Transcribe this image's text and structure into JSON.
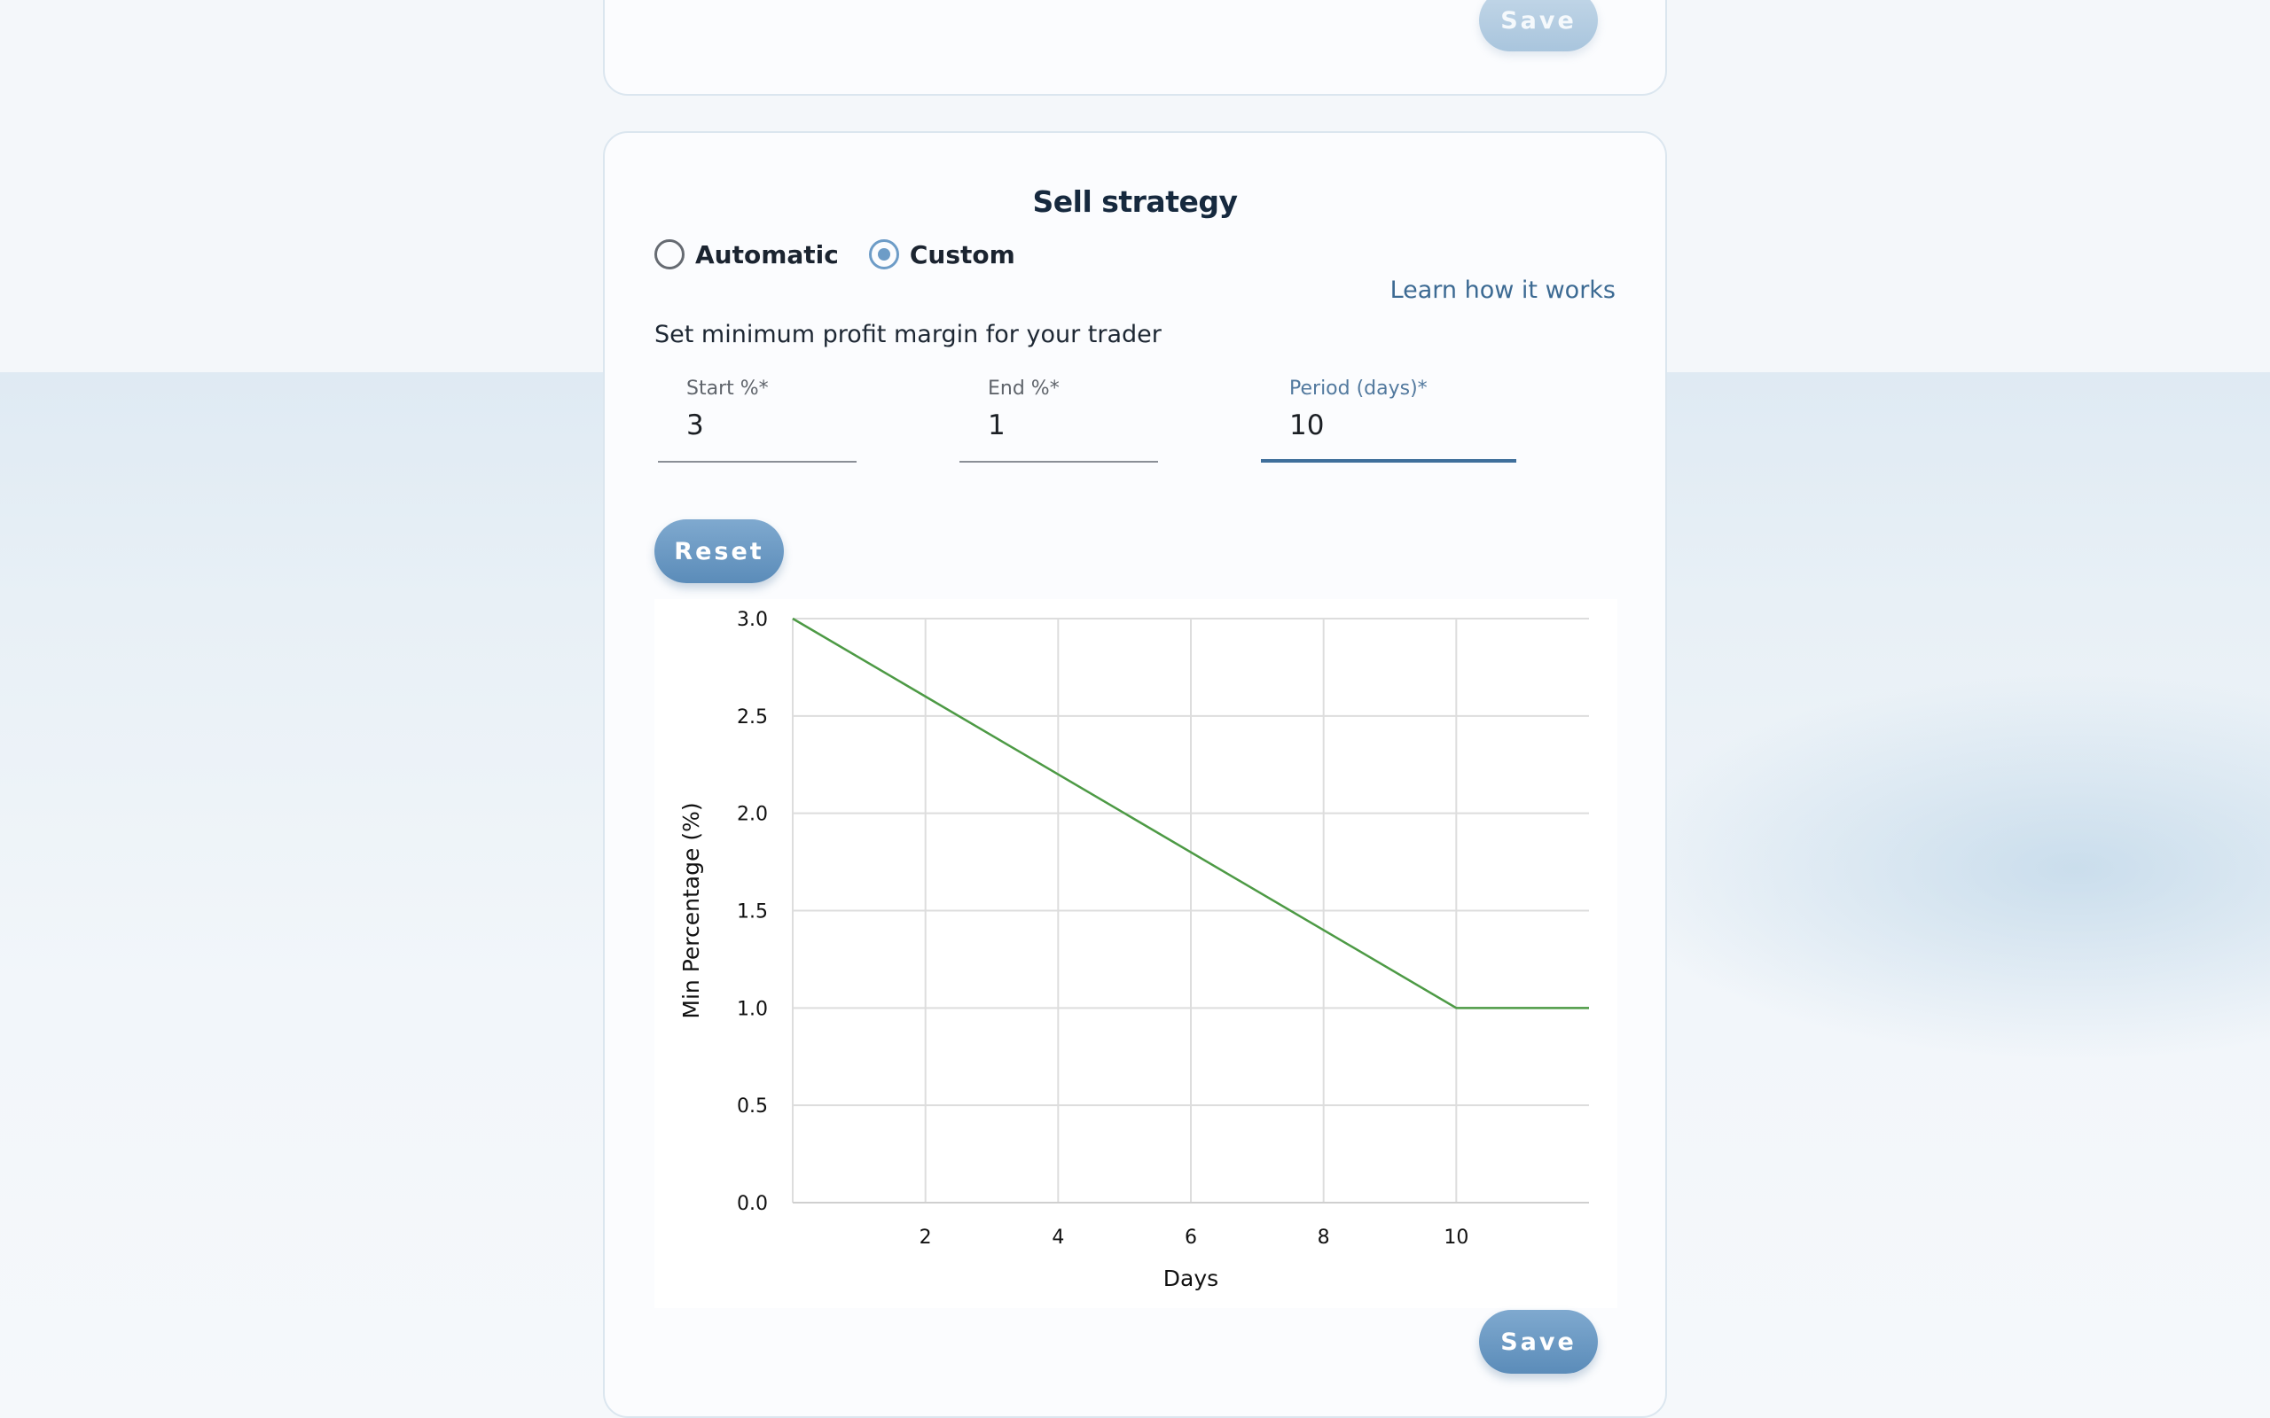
{
  "top_card": {
    "save_label": "Save"
  },
  "sell_strategy": {
    "title": "Sell strategy",
    "modes": [
      {
        "label": "Automatic",
        "selected": false
      },
      {
        "label": "Custom",
        "selected": true
      }
    ],
    "learn_link": "Learn how it works",
    "subtitle": "Set minimum profit margin for your trader",
    "fields": {
      "start": {
        "label": "Start %*",
        "value": "3"
      },
      "end": {
        "label": "End %*",
        "value": "1"
      },
      "period": {
        "label": "Period (days)*",
        "value": "10",
        "focused": true
      }
    },
    "reset_label": "Reset",
    "save_label": "Save"
  },
  "colors": {
    "accent": "#6d9cc7",
    "button": "#5b8cb9",
    "line": "#4d9a45",
    "grid": "#dddddd",
    "link": "#3c6a93"
  },
  "chart_data": {
    "type": "line",
    "xlabel": "Days",
    "ylabel": "Min Percentage (%)",
    "xlim": [
      0,
      12
    ],
    "ylim": [
      0,
      3
    ],
    "x_ticks": [
      2,
      4,
      6,
      8,
      10
    ],
    "y_ticks": [
      "0.0",
      "0.5",
      "1.0",
      "1.5",
      "2.0",
      "2.5",
      "3.0"
    ],
    "grid": true,
    "series": [
      {
        "x": [
          0,
          10,
          12
        ],
        "y": [
          3.0,
          1.0,
          1.0
        ]
      }
    ]
  }
}
